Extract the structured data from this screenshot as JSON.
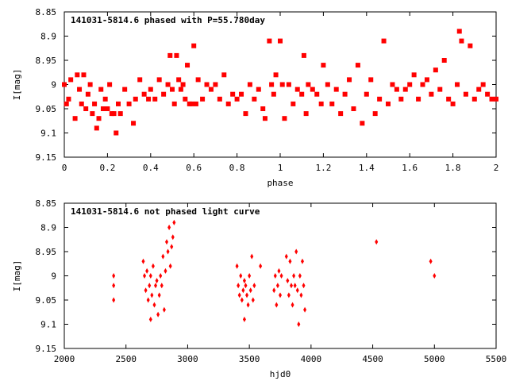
{
  "chart_data": [
    {
      "type": "scatter",
      "title": "141031-5814.6 phased with P=55.780day",
      "xlabel": "phase",
      "ylabel": "I[mag]",
      "xlim": [
        0,
        2
      ],
      "ylim": [
        9.15,
        8.85
      ],
      "y_inverted": true,
      "xticks": [
        "0",
        "0.2",
        "0.4",
        "0.6",
        "0.8",
        "1",
        "1.2",
        "1.4",
        "1.6",
        "1.8",
        "2"
      ],
      "yticks": [
        "8.85",
        "8.9",
        "8.95",
        "9",
        "9.05",
        "9.1",
        "9.15"
      ],
      "grid": false,
      "marker": "filled-square",
      "color": "#ff0000",
      "series": [
        {
          "x": [
            0.0,
            0.01,
            0.02,
            0.03,
            0.05,
            0.06,
            0.07,
            0.08,
            0.09,
            0.1,
            0.11,
            0.12,
            0.13,
            0.14,
            0.15,
            0.16,
            0.17,
            0.18,
            0.19,
            0.2,
            0.21,
            0.22,
            0.23,
            0.24,
            0.25,
            0.26,
            0.28,
            0.3,
            0.32,
            0.33,
            0.35,
            0.37,
            0.39,
            0.4,
            0.42,
            0.44,
            0.46,
            0.48,
            0.49,
            0.5,
            0.51,
            0.52,
            0.53,
            0.54,
            0.55,
            0.56,
            0.57,
            0.58,
            0.59,
            0.6,
            0.61,
            0.62,
            0.64,
            0.66,
            0.68,
            0.7,
            0.72,
            0.74,
            0.76,
            0.78,
            0.8,
            0.82,
            0.84,
            0.86,
            0.88,
            0.9,
            0.92,
            0.93,
            0.95,
            0.96,
            0.97,
            0.98,
            1.0,
            1.01,
            1.02,
            1.04,
            1.06,
            1.08,
            1.1,
            1.11,
            1.12,
            1.13,
            1.15,
            1.17,
            1.19,
            1.2,
            1.22,
            1.24,
            1.26,
            1.28,
            1.3,
            1.32,
            1.34,
            1.36,
            1.38,
            1.4,
            1.42,
            1.44,
            1.46,
            1.48,
            1.5,
            1.52,
            1.54,
            1.56,
            1.58,
            1.6,
            1.62,
            1.64,
            1.66,
            1.68,
            1.7,
            1.72,
            1.74,
            1.76,
            1.78,
            1.8,
            1.82,
            1.83,
            1.84,
            1.86,
            1.88,
            1.9,
            1.92,
            1.94,
            1.96,
            1.98,
            2.0
          ],
          "y": [
            9.0,
            9.04,
            9.03,
            8.99,
            9.07,
            8.98,
            9.01,
            9.04,
            8.98,
            9.05,
            9.02,
            9.0,
            9.06,
            9.04,
            9.09,
            9.07,
            9.01,
            9.05,
            9.03,
            9.05,
            9.0,
            9.06,
            9.06,
            9.1,
            9.04,
            9.06,
            9.01,
            9.04,
            9.08,
            9.03,
            8.99,
            9.02,
            9.03,
            9.01,
            9.03,
            8.99,
            9.02,
            9.0,
            8.94,
            9.01,
            9.04,
            8.94,
            8.99,
            9.01,
            9.0,
            9.03,
            8.96,
            9.04,
            9.04,
            8.92,
            9.04,
            8.99,
            9.03,
            9.0,
            9.01,
            9.0,
            9.03,
            8.98,
            9.04,
            9.02,
            9.03,
            9.02,
            9.06,
            9.0,
            9.03,
            9.01,
            9.05,
            9.07,
            8.91,
            9.0,
            9.02,
            8.98,
            8.91,
            9.0,
            9.07,
            9.0,
            9.04,
            9.01,
            9.02,
            8.94,
            9.06,
            9.0,
            9.01,
            9.02,
            9.04,
            8.96,
            9.0,
            9.04,
            9.01,
            9.06,
            9.02,
            8.99,
            9.05,
            8.96,
            9.08,
            9.02,
            8.99,
            9.06,
            9.03,
            8.91,
            9.04,
            9.0,
            9.01,
            9.03,
            9.01,
            9.0,
            8.98,
            9.03,
            9.0,
            8.99,
            9.02,
            8.97,
            9.01,
            8.95,
            9.03,
            9.04,
            9.0,
            8.89,
            8.91,
            9.02,
            8.92,
            9.03,
            9.01,
            9.0,
            9.02,
            9.03,
            9.03
          ]
        }
      ]
    },
    {
      "type": "scatter",
      "title": "141031-5814.6 not phased light curve",
      "xlabel": "hjd0",
      "ylabel": "I[mag]",
      "xlim": [
        2000,
        5500
      ],
      "ylim": [
        9.15,
        8.85
      ],
      "y_inverted": true,
      "xticks": [
        "2000",
        "2500",
        "3000",
        "3500",
        "4000",
        "4500",
        "5000",
        "5500"
      ],
      "yticks": [
        "8.85",
        "8.9",
        "8.95",
        "9",
        "9.05",
        "9.1",
        "9.15"
      ],
      "grid": false,
      "marker": "diamond",
      "color": "#ff0000",
      "series": [
        {
          "x": [
            2400,
            2400,
            2400,
            2640,
            2650,
            2660,
            2670,
            2680,
            2690,
            2700,
            2700,
            2710,
            2720,
            2730,
            2740,
            2750,
            2760,
            2770,
            2780,
            2790,
            2800,
            2810,
            2820,
            2830,
            2840,
            2850,
            2860,
            2870,
            2880,
            2890,
            3400,
            3410,
            3420,
            3430,
            3440,
            3450,
            3460,
            3460,
            3470,
            3480,
            3490,
            3500,
            3510,
            3520,
            3530,
            3540,
            3590,
            3700,
            3710,
            3720,
            3730,
            3740,
            3750,
            3760,
            3800,
            3810,
            3820,
            3830,
            3840,
            3850,
            3860,
            3870,
            3880,
            3890,
            3900,
            3910,
            3920,
            3930,
            3940,
            3950,
            4530,
            4970,
            5000
          ],
          "y": [
            9.0,
            9.02,
            9.05,
            8.97,
            9.0,
            9.03,
            8.99,
            9.05,
            9.02,
            9.09,
            9.0,
            9.04,
            8.98,
            9.06,
            9.02,
            9.01,
            9.08,
            9.04,
            9.0,
            9.02,
            8.96,
            9.07,
            8.99,
            8.93,
            8.95,
            8.9,
            8.98,
            8.94,
            8.92,
            8.89,
            8.98,
            9.02,
            9.04,
            9.0,
            9.05,
            9.03,
            9.09,
            9.01,
            9.02,
            9.04,
            9.06,
            9.0,
            9.03,
            8.96,
            9.05,
            9.02,
            8.98,
            9.03,
            9.0,
            9.06,
            9.02,
            8.99,
            9.04,
            9.0,
            8.96,
            9.01,
            9.04,
            8.97,
            9.02,
            9.06,
            9.0,
            9.02,
            8.95,
            9.03,
            9.1,
            9.0,
            9.04,
            8.97,
            9.02,
            9.07,
            8.93,
            8.97,
            9.0
          ]
        }
      ]
    }
  ]
}
